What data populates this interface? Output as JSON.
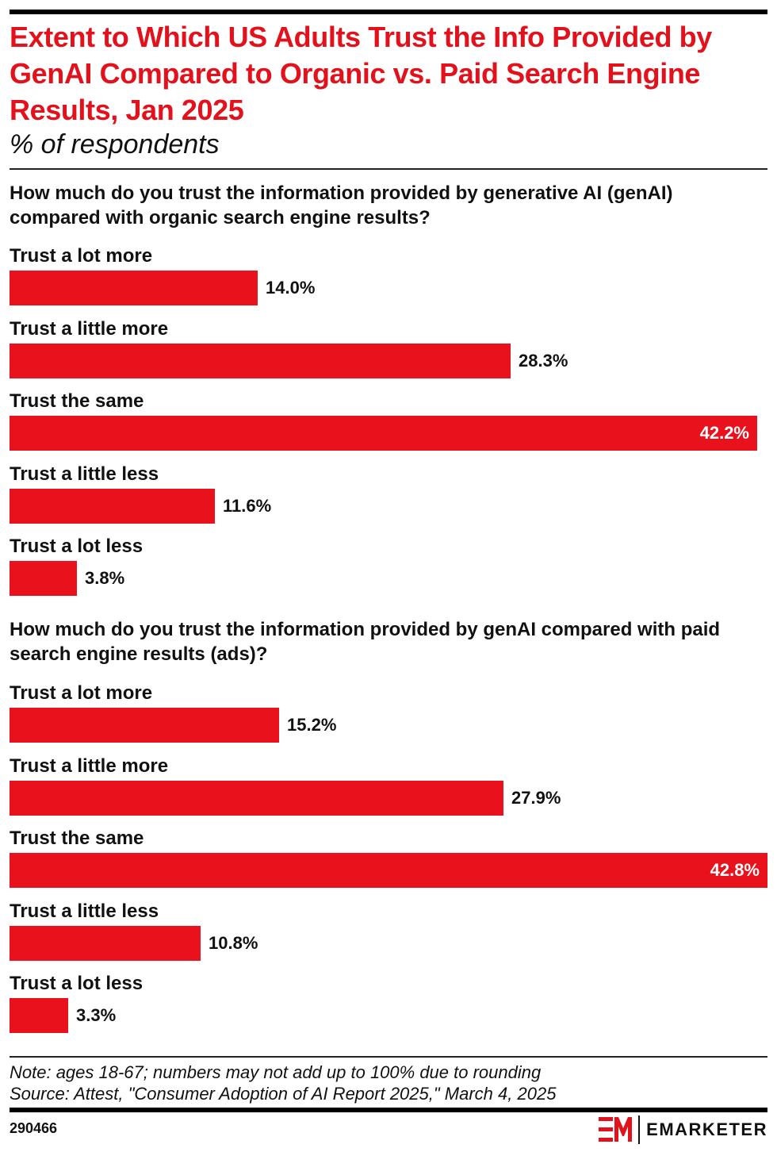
{
  "title": "Extent to Which US Adults Trust the Info Provided by GenAI Compared to Organic vs. Paid Search Engine Results, Jan 2025",
  "subtitle": "% of respondents",
  "colors": {
    "accent": "#e3111b",
    "bar": "#e8111c"
  },
  "chart_data": [
    {
      "type": "bar",
      "orientation": "horizontal",
      "title": "How much do you trust the information provided by generative AI (genAI) compared with organic search engine results?",
      "categories": [
        "Trust a lot more",
        "Trust a little more",
        "Trust the same",
        "Trust a little less",
        "Trust a lot less"
      ],
      "values": [
        14.0,
        28.3,
        42.2,
        11.6,
        3.8
      ],
      "value_labels": [
        "14.0%",
        "28.3%",
        "42.2%",
        "11.6%",
        "3.8%"
      ],
      "xlim": [
        0,
        42.8
      ]
    },
    {
      "type": "bar",
      "orientation": "horizontal",
      "title": "How much do you trust the information provided by genAI compared with paid search engine results (ads)?",
      "categories": [
        "Trust a lot more",
        "Trust a little more",
        "Trust the same",
        "Trust a little less",
        "Trust a lot less"
      ],
      "values": [
        15.2,
        27.9,
        42.8,
        10.8,
        3.3
      ],
      "value_labels": [
        "15.2%",
        "27.9%",
        "42.8%",
        "10.8%",
        "3.3%"
      ],
      "xlim": [
        0,
        42.8
      ]
    }
  ],
  "footer": {
    "note": "Note: ages 18-67; numbers may not add up to 100% due to rounding",
    "source": "Source: Attest, \"Consumer Adoption of AI Report 2025,\" March 4, 2025",
    "chart_id": "290466",
    "brand": "EMARKETER",
    "logo_icon": "em-logo-icon"
  }
}
